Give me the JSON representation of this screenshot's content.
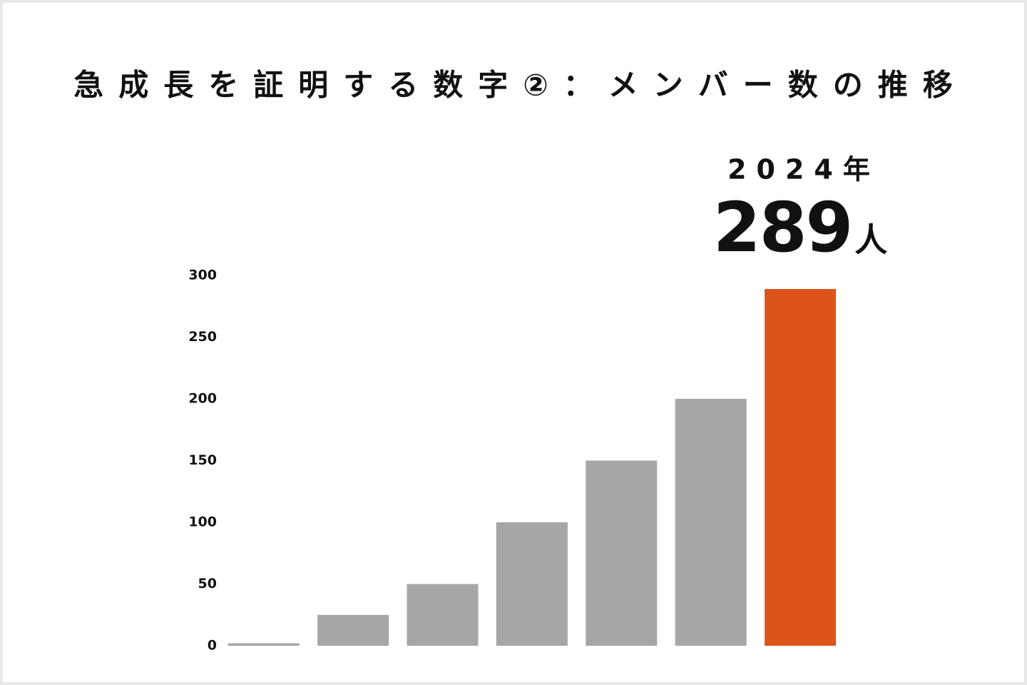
{
  "chart_data": {
    "type": "bar",
    "title": "急成長を証明する数字②：メンバー数の推移",
    "annotations": [
      "2024年"
    ],
    "categories": [
      null,
      null,
      null,
      null,
      null,
      null,
      null
    ],
    "values": [
      2,
      25,
      50,
      100,
      150,
      200,
      289
    ],
    "value_labels": [
      null,
      null,
      null,
      null,
      null,
      null,
      "289人"
    ],
    "colors": [
      "#a6a6a6",
      "#a6a6a6",
      "#a6a6a6",
      "#a6a6a6",
      "#a6a6a6",
      "#a6a6a6",
      "#dc541b"
    ],
    "ylim": [
      0,
      300
    ],
    "yticks": [
      0,
      50,
      100,
      150,
      200,
      250,
      300
    ],
    "grid": false
  }
}
